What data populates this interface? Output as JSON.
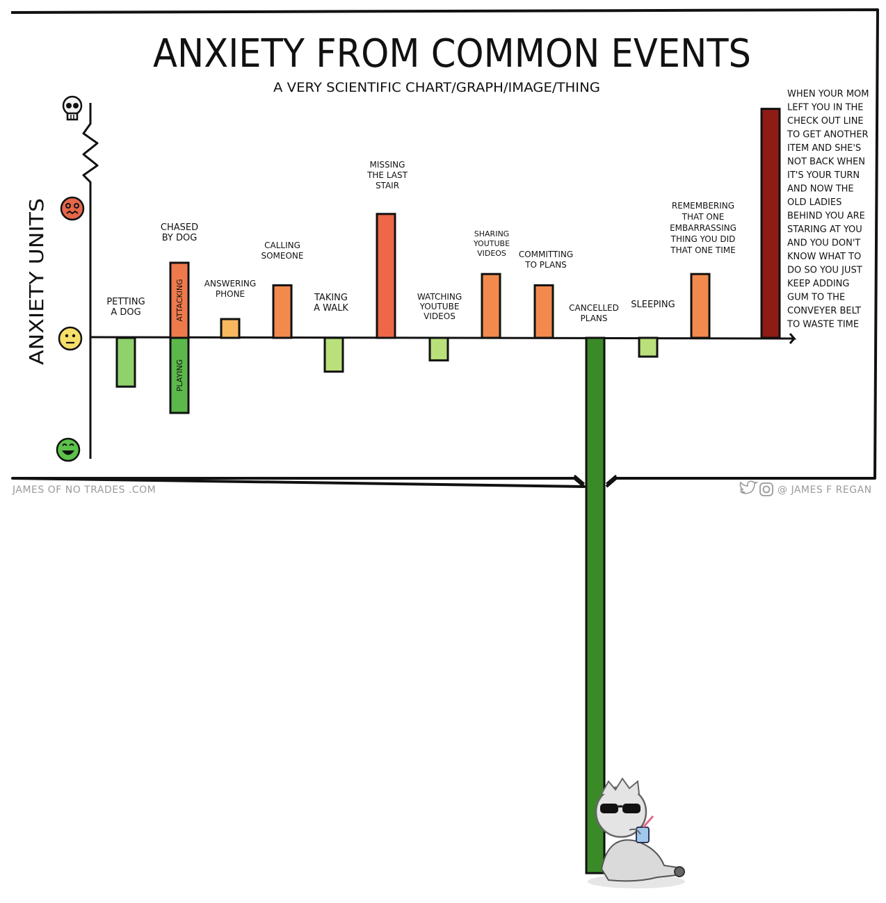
{
  "chart_data": {
    "type": "bar",
    "title": "ANXIETY FROM COMMON EVENTS",
    "subtitle": "A VERY SCIENTIFIC CHART/GRAPH/IMAGE/THING",
    "ylabel": "ANXIETY UNITS",
    "xlabel": "",
    "ylim": [
      -5,
      10
    ],
    "grid": false,
    "legend": "none",
    "y_axis_icons": [
      "skull",
      "panicked-face",
      "neutral-face",
      "happy-face"
    ],
    "categories": [
      "PETTING A DOG",
      "CHASED BY DOG",
      "ANSWERING PHONE",
      "CALLING SOMEONE",
      "TAKING A WALK",
      "MISSING THE LAST STAIR",
      "WATCHING YOUTUBE VIDEOS",
      "SHARING YOUTUBE VIDEOS",
      "COMMITTING TO PLANS",
      "CANCELLED PLANS",
      "SLEEPING",
      "REMEMBERING THAT ONE EMBARRASSING THING YOU DID THAT ONE TIME",
      "WHEN YOUR MOM LEFT YOU IN THE CHECK OUT LINE TO GET ANOTHER ITEM AND SHE'S NOT BACK WHEN IT'S YOUR TURN AND NOW THE OLD LADIES BEHIND YOU ARE STARING AT YOU AND YOU DON'T KNOW WHAT TO DO SO YOU JUST KEEP ADDING GUM TO THE CONVEYER BELT TO WASTE TIME"
    ],
    "series": [
      {
        "values": [
          -1.3,
          2.0,
          0.5,
          1.4,
          -0.9,
          3.3,
          -0.6,
          1.7,
          1.4,
          -14.0,
          -0.5,
          1.7,
          6.1
        ],
        "colors": [
          "#8fd16a",
          "#ee7a4c",
          "#f7b860",
          "#f28a4e",
          "#b9e07a",
          "#ee6848",
          "#b9e07a",
          "#f28a4e",
          "#f28a4e",
          "#3a8a28",
          "#b9e07a",
          "#f28a4e",
          "#8e1b16"
        ]
      }
    ],
    "split_bar": {
      "category": "CHASED BY DOG",
      "segments": [
        {
          "label": "ATTACKING",
          "value": 2.0,
          "color": "#ee7a4c"
        },
        {
          "label": "PLAYING",
          "value": -2.0,
          "color": "#5cb84a"
        }
      ]
    },
    "axis_break": true
  },
  "footer": {
    "left": "JAMES OF NO TRADES .COM",
    "right": "@ JAMES F REGAN"
  },
  "icons": [
    "skull-icon",
    "twitter-icon",
    "instagram-icon",
    "sunglasses-character"
  ]
}
